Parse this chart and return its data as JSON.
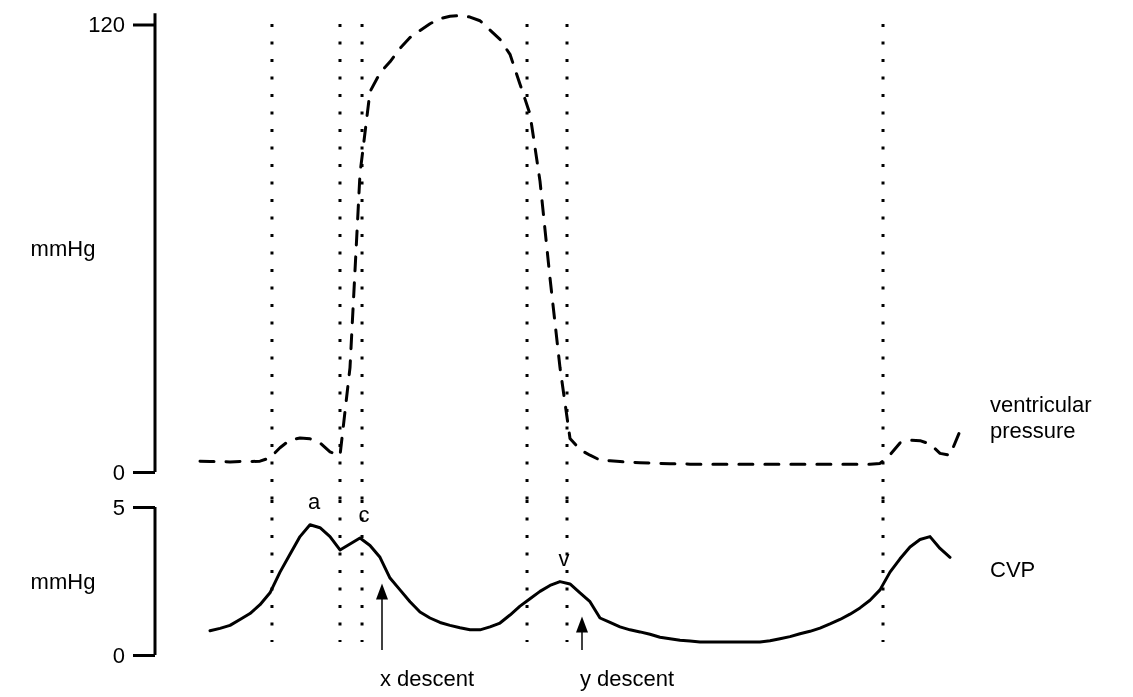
{
  "chart_data": [
    {
      "type": "line",
      "ylabel": "mmHg",
      "categories": [
        null,
        null,
        null,
        null,
        null,
        null,
        null,
        null,
        null,
        null,
        null,
        null,
        null,
        null,
        null,
        null,
        null,
        null,
        null,
        null,
        null,
        null,
        null,
        null,
        null,
        null,
        null,
        null,
        null,
        null,
        null,
        null,
        null,
        null,
        null,
        null,
        null,
        null,
        null,
        null,
        null,
        null,
        null,
        null,
        null,
        null,
        null,
        null,
        null,
        null,
        null,
        null,
        null,
        null,
        null,
        null,
        null,
        null,
        null,
        null,
        null,
        null,
        null,
        null,
        null,
        null,
        null,
        null,
        null,
        null,
        null,
        null,
        null,
        null,
        null,
        null,
        null
      ],
      "ylim": [
        0,
        123
      ],
      "yticks": [
        0,
        120
      ],
      "tick_labels": "y",
      "series": [
        {
          "name": "ventricular pressure",
          "color": "#000000",
          "line_style": "dashed",
          "values": [
            2.9,
            2.8,
            2.8,
            2.7,
            2.8,
            2.8,
            2.9,
            3.8,
            6.5,
            8.6,
            9.1,
            8.9,
            7.8,
            5.4,
            4.4,
            28,
            80,
            102,
            107,
            110,
            113.6,
            116.5,
            118.4,
            120.2,
            121.6,
            122.2,
            122.4,
            122,
            121,
            118.5,
            116,
            112,
            104,
            96,
            78,
            52,
            28,
            9,
            6,
            4.5,
            3.2,
            3.0,
            2.8,
            2.6,
            2.5,
            2.4,
            2.3,
            2.2,
            2.2,
            2.1,
            2.1,
            2.1,
            2.1,
            2.1,
            2.1,
            2.1,
            2.1,
            2.1,
            2.1,
            2.1,
            2.1,
            2.1,
            2.1,
            2.1,
            2.1,
            2.1,
            2.1,
            2.1,
            2.3,
            4.6,
            7.8,
            8.5,
            8.4,
            7.5,
            5,
            4.5,
            11
          ]
        }
      ]
    },
    {
      "type": "line",
      "ylabel": "mmHg",
      "categories": [
        null,
        null,
        null,
        null,
        null,
        null,
        null,
        null,
        null,
        null,
        null,
        null,
        null,
        null,
        null,
        null,
        null,
        null,
        null,
        null,
        null,
        null,
        null,
        null,
        null,
        null,
        null,
        null,
        null,
        null,
        null,
        null,
        null,
        null,
        null,
        null,
        null,
        null,
        null,
        null,
        null,
        null,
        null,
        null,
        null,
        null,
        null,
        null,
        null,
        null,
        null,
        null,
        null,
        null,
        null,
        null,
        null,
        null,
        null,
        null,
        null,
        null,
        null,
        null,
        null,
        null,
        null,
        null,
        null,
        null,
        null,
        null,
        null,
        null,
        null,
        null,
        null
      ],
      "ylim": [
        0,
        5
      ],
      "yticks": [
        0,
        5
      ],
      "tick_labels": "y",
      "series": [
        {
          "name": "CVP",
          "color": "#000000",
          "line_style": "solid",
          "values": [
            null,
            0.82,
            0.9,
            1.0,
            1.2,
            1.4,
            1.7,
            2.1,
            2.8,
            3.4,
            4.0,
            4.4,
            4.3,
            4.0,
            3.55,
            3.75,
            3.95,
            3.7,
            3.3,
            2.6,
            2.2,
            1.8,
            1.45,
            1.25,
            1.1,
            1.0,
            0.92,
            0.85,
            0.85,
            0.95,
            1.08,
            1.35,
            1.65,
            1.9,
            2.15,
            2.35,
            2.48,
            2.4,
            2.1,
            1.8,
            1.25,
            1.1,
            0.95,
            0.85,
            0.78,
            0.7,
            0.6,
            0.55,
            0.5,
            0.47,
            0.44,
            0.44,
            0.44,
            0.44,
            0.44,
            0.44,
            0.44,
            0.48,
            0.55,
            0.62,
            0.72,
            0.8,
            0.91,
            1.05,
            1.2,
            1.38,
            1.59,
            1.85,
            2.2,
            2.8,
            3.25,
            3.65,
            3.9,
            4.0,
            3.6,
            3.3,
            null
          ]
        }
      ],
      "annotations": [
        "a",
        "c",
        "v",
        "x descent",
        "y descent"
      ]
    }
  ]
}
